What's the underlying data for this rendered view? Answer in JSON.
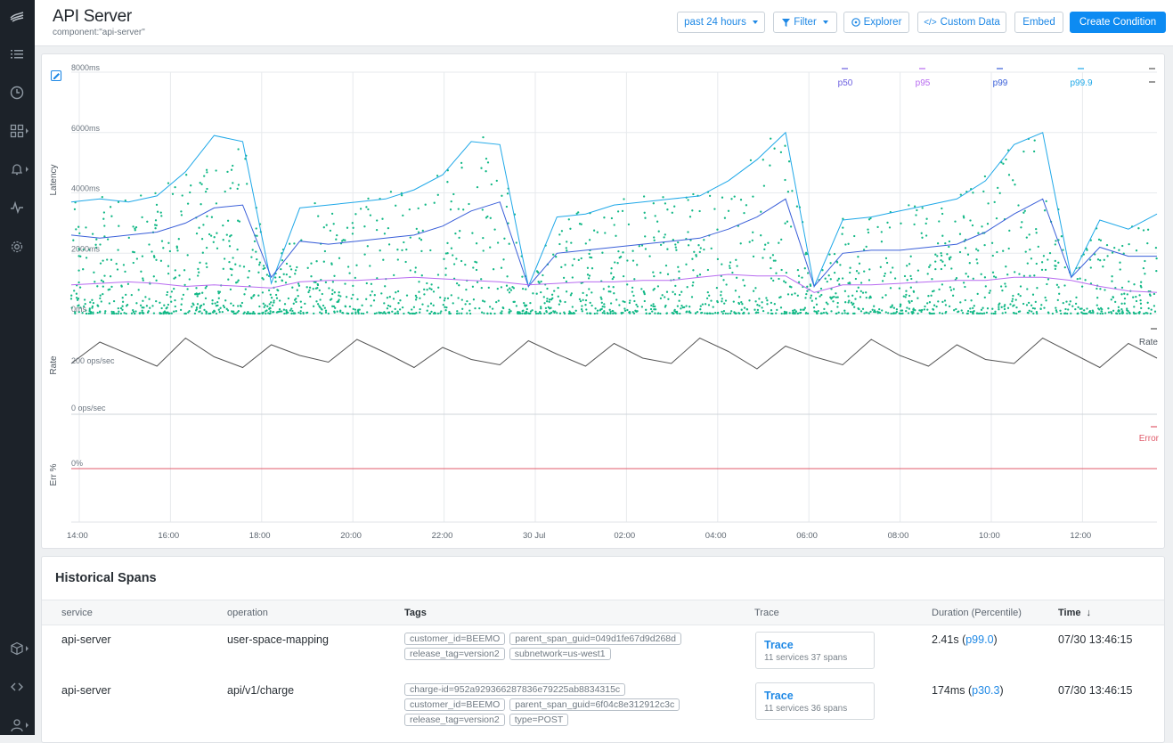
{
  "header": {
    "title": "API Server",
    "subtitle": "component:\"api-server\"",
    "range_label": "past 24 hours",
    "filter_label": "Filter",
    "explorer_label": "Explorer",
    "custom_data_label": "Custom Data",
    "embed_label": "Embed",
    "create_label": "Create Condition"
  },
  "sidebar": {
    "items": [
      "logo-icon",
      "list-icon",
      "clock-icon",
      "dashboard-icon",
      "bell-icon",
      "pulse-icon",
      "gear-icon",
      "box-icon",
      "code-icon",
      "user-icon"
    ]
  },
  "colors": {
    "p50": "#6b5fe0",
    "p95": "#b86bf0",
    "p99": "#3a5fd9",
    "p999": "#1fa8e8",
    "dots": "#12b886",
    "rate": "#555555",
    "error": "#e05b6b",
    "accent": "#0d8bf2"
  },
  "chart_data": [
    {
      "type": "scatter",
      "title": "",
      "ylabel": "Latency",
      "y_ticks": [
        "8000ms",
        "6000ms",
        "4000ms",
        "2000ms",
        "0ms"
      ],
      "ylim": [
        0,
        8000
      ],
      "x_ticks": [
        "14:00",
        "16:00",
        "18:00",
        "20:00",
        "22:00",
        "30 Jul",
        "02:00",
        "04:00",
        "06:00",
        "08:00",
        "10:00",
        "12:00"
      ],
      "legend": [
        "p50",
        "p95",
        "p99",
        "p99.9"
      ],
      "series": [
        {
          "name": "p99.9",
          "values": [
            3700,
            3800,
            3700,
            3900,
            4700,
            5900,
            5700,
            1000,
            3500,
            3600,
            3700,
            3800,
            4100,
            4600,
            5700,
            5600,
            900,
            3200,
            3300,
            3600,
            3700,
            3800,
            3900,
            4400,
            5100,
            6000,
            900,
            3100,
            3200,
            3400,
            3600,
            3800,
            4400,
            5600,
            6000,
            1200,
            3100,
            2800,
            3300
          ]
        },
        {
          "name": "p99",
          "values": [
            2600,
            2500,
            2600,
            2700,
            3000,
            3500,
            3600,
            1200,
            2400,
            2300,
            2400,
            2500,
            2600,
            2900,
            3400,
            3700,
            900,
            2000,
            2100,
            2200,
            2300,
            2400,
            2500,
            2800,
            3200,
            3800,
            900,
            2000,
            2100,
            2100,
            2200,
            2300,
            2700,
            3300,
            3800,
            1200,
            2200,
            1900,
            1900
          ]
        },
        {
          "name": "p95",
          "values": [
            950,
            1000,
            1050,
            1000,
            900,
            950,
            900,
            850,
            1050,
            1100,
            1100,
            1150,
            1200,
            1150,
            1100,
            1050,
            950,
            1000,
            1050,
            1050,
            1100,
            1100,
            1200,
            1300,
            1250,
            1250,
            700,
            950,
            950,
            1000,
            1050,
            1100,
            1100,
            1200,
            1200,
            1100,
            900,
            750,
            700
          ]
        }
      ]
    },
    {
      "type": "line",
      "ylabel": "Rate",
      "y_ticks": [
        "200 ops/sec",
        "0 ops/sec"
      ],
      "legend": [
        "Rate"
      ],
      "series": [
        {
          "name": "Rate",
          "values": [
            190,
            270,
            225,
            180,
            285,
            215,
            175,
            260,
            220,
            195,
            280,
            230,
            175,
            250,
            205,
            185,
            275,
            225,
            180,
            265,
            210,
            190,
            285,
            235,
            170,
            255,
            215,
            185,
            280,
            220,
            180,
            260,
            205,
            190,
            285,
            230,
            175,
            265,
            210
          ]
        }
      ]
    },
    {
      "type": "line",
      "ylabel": "Err %",
      "y_ticks": [
        "0%"
      ],
      "legend": [
        "Error"
      ],
      "series": [
        {
          "name": "Error",
          "values": [
            0,
            0
          ]
        }
      ]
    }
  ],
  "spans": {
    "title": "Historical Spans",
    "columns": [
      "service",
      "operation",
      "Tags",
      "Trace",
      "Duration (Percentile)",
      "Time"
    ],
    "sort_icon": "arrow-down-icon",
    "rows": [
      {
        "service": "api-server",
        "operation": "user-space-mapping",
        "tags": [
          "customer_id=BEEMO",
          "parent_span_guid=049d1fe67d9d268d",
          "release_tag=version2",
          "subnetwork=us-west1"
        ],
        "trace_title": "Trace",
        "trace_meta": "11 services  37 spans",
        "duration": "2.41s",
        "percentile": "p99.0",
        "time": "07/30 13:46:15"
      },
      {
        "service": "api-server",
        "operation": "api/v1/charge",
        "tags": [
          "charge-id=952a929366287836e79225ab8834315c",
          "customer_id=BEEMO",
          "parent_span_guid=6f04c8e312912c3c",
          "release_tag=version2",
          "type=POST"
        ],
        "trace_title": "Trace",
        "trace_meta": "11 services  36 spans",
        "duration": "174ms",
        "percentile": "p30.3",
        "time": "07/30 13:46:15"
      }
    ]
  }
}
